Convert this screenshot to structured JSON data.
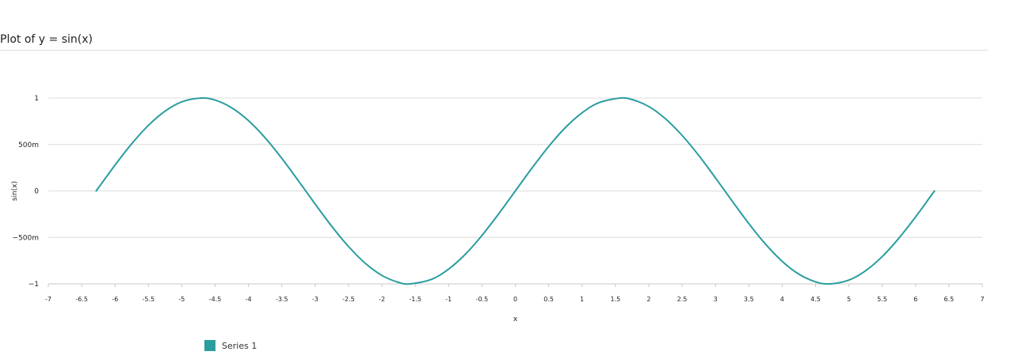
{
  "page": {
    "title": "Plot of y = sin(x)"
  },
  "chart_data": {
    "type": "line",
    "title": "Plot of y = sin(x)",
    "xlabel": "x",
    "ylabel": "sin(x)",
    "xlim": [
      -7,
      7
    ],
    "ylim": [
      -1,
      1
    ],
    "x_ticks": [
      -7,
      -6.5,
      -6,
      -5.5,
      -5,
      -4.5,
      -4,
      -3.5,
      -3,
      -2.5,
      -2,
      -1.5,
      -1,
      -0.5,
      0,
      0.5,
      1,
      1.5,
      2,
      2.5,
      3,
      3.5,
      4,
      4.5,
      5,
      5.5,
      6,
      6.5,
      7
    ],
    "x_tick_labels": [
      "-7",
      "-6.5",
      "-6",
      "-5.5",
      "-5",
      "-4.5",
      "-4",
      "-3.5",
      "-3",
      "-2.5",
      "-2",
      "-1.5",
      "-1",
      "-0.5",
      "0",
      "0.5",
      "1",
      "1.5",
      "2",
      "2.5",
      "3",
      "3.5",
      "4",
      "4.5",
      "5",
      "5.5",
      "6",
      "6.5",
      "7"
    ],
    "y_ticks": [
      -1,
      -0.5,
      0,
      0.5,
      1
    ],
    "y_tick_labels": [
      "−1",
      "−500m",
      "0",
      "500m",
      "1"
    ],
    "grid": "horizontal",
    "legend_position": "bottom-left",
    "series": [
      {
        "name": "Series 1",
        "color": "#2a9d9f",
        "x": [
          -6.283,
          -6.0,
          -5.75,
          -5.5,
          -5.25,
          -5.0,
          -4.712,
          -4.5,
          -4.25,
          -4.0,
          -3.75,
          -3.5,
          -3.25,
          -3.0,
          -2.75,
          -2.5,
          -2.25,
          -2.0,
          -1.75,
          -1.571,
          -1.25,
          -1.0,
          -0.75,
          -0.5,
          -0.25,
          0.0,
          0.25,
          0.5,
          0.75,
          1.0,
          1.25,
          1.571,
          1.75,
          2.0,
          2.25,
          2.5,
          2.75,
          3.0,
          3.25,
          3.5,
          3.75,
          4.0,
          4.25,
          4.5,
          4.712,
          5.0,
          5.25,
          5.5,
          5.75,
          6.0,
          6.283
        ],
        "y": [
          0.0,
          0.279,
          0.508,
          0.706,
          0.859,
          0.959,
          1.0,
          0.978,
          0.895,
          0.757,
          0.572,
          0.351,
          0.108,
          -0.141,
          -0.382,
          -0.598,
          -0.778,
          -0.909,
          -0.984,
          -1.0,
          -0.949,
          -0.841,
          -0.682,
          -0.479,
          -0.247,
          0.0,
          0.247,
          0.479,
          0.682,
          0.841,
          0.949,
          1.0,
          0.984,
          0.909,
          0.778,
          0.598,
          0.382,
          0.141,
          -0.108,
          -0.351,
          -0.572,
          -0.757,
          -0.895,
          -0.978,
          -1.0,
          -0.959,
          -0.859,
          -0.706,
          -0.508,
          -0.279,
          0.0
        ]
      }
    ]
  }
}
